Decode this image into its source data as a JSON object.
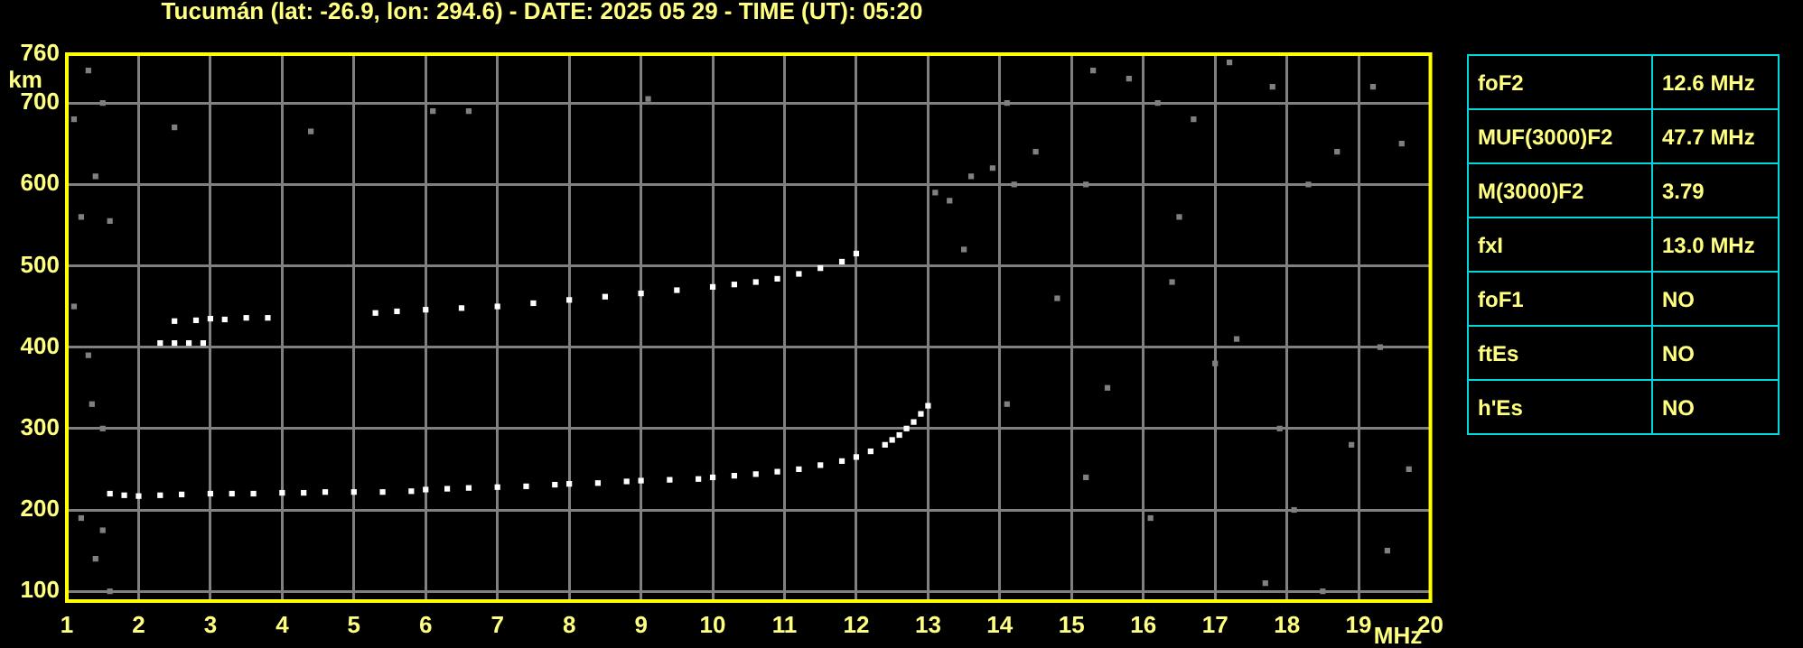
{
  "chart_data": {
    "type": "scatter",
    "title": "Tucumán (lat: -26.9, lon: 294.6) - DATE: 2025 05 29 - TIME (UT): 05:20",
    "xlabel": "MHz",
    "ylabel": "km",
    "xlim": [
      1,
      20
    ],
    "ylim": [
      88,
      760
    ],
    "xticks": [
      1,
      2,
      3,
      4,
      5,
      6,
      7,
      8,
      9,
      10,
      11,
      12,
      13,
      14,
      15,
      16,
      17,
      18,
      19,
      20
    ],
    "yticks": [
      100,
      200,
      300,
      400,
      500,
      600,
      700,
      760
    ],
    "grid": true,
    "marker": "square",
    "legend": false,
    "series": [
      {
        "color": "#ffffff",
        "x": [
          1.6,
          1.8,
          2.0,
          2.3,
          2.6,
          3.0,
          3.3,
          3.6,
          4.0,
          4.3,
          4.6,
          5.0,
          5.4,
          5.8,
          6.0,
          6.3,
          6.6,
          7.0,
          7.4,
          7.8,
          8.0,
          8.4,
          8.8,
          9.0,
          9.4,
          9.8,
          10.0,
          10.3,
          10.6,
          10.9,
          11.2,
          11.5,
          11.8,
          12.0,
          12.2,
          12.4,
          12.5,
          12.6,
          12.7,
          12.8,
          12.9,
          13.0
        ],
        "values": [
          220,
          218,
          217,
          218,
          219,
          220,
          220,
          220,
          221,
          221,
          222,
          222,
          222,
          223,
          225,
          226,
          227,
          228,
          229,
          231,
          232,
          233,
          235,
          236,
          237,
          238,
          240,
          242,
          244,
          247,
          250,
          255,
          260,
          265,
          272,
          280,
          286,
          292,
          300,
          308,
          318,
          328
        ]
      },
      {
        "color": "#ffffff",
        "x": [
          2.3,
          2.5,
          2.7,
          2.9,
          2.5,
          2.8,
          3.0,
          3.2,
          3.5,
          3.8,
          5.3,
          5.6,
          6.0,
          6.5,
          7.0,
          7.5,
          8.0,
          8.5,
          9.0,
          9.5,
          10.0,
          10.3,
          10.6,
          10.9,
          11.2,
          11.5,
          11.8,
          12.0
        ],
        "values": [
          405,
          405,
          405,
          405,
          432,
          433,
          435,
          434,
          436,
          436,
          442,
          444,
          446,
          448,
          450,
          454,
          458,
          462,
          466,
          470,
          474,
          477,
          480,
          484,
          490,
          497,
          505,
          515
        ]
      },
      {
        "color": "#808080",
        "x": [
          1.1,
          1.3,
          1.5,
          1.4,
          1.2,
          1.6,
          1.1,
          1.3,
          1.5,
          1.2,
          1.4,
          1.6,
          2.5,
          4.4,
          6.1,
          6.6,
          9.1,
          1.35,
          1.5,
          13.1,
          13.3,
          13.6,
          13.9,
          14.2,
          14.5,
          14.1,
          15.3,
          15.8,
          16.2,
          16.7,
          17.2,
          17.8,
          18.3,
          18.7,
          19.2,
          19.6,
          13.5,
          14.8,
          15.5,
          16.4,
          17.3,
          18.1,
          18.9,
          19.4,
          14.1,
          15.2,
          16.1,
          17.0,
          17.7,
          18.5,
          19.3,
          19.7,
          15.2,
          16.5,
          17.9
        ],
        "values": [
          680,
          740,
          700,
          610,
          560,
          555,
          450,
          390,
          300,
          190,
          140,
          100,
          670,
          665,
          690,
          690,
          705,
          330,
          175,
          590,
          580,
          610,
          620,
          600,
          640,
          700,
          740,
          730,
          700,
          680,
          750,
          720,
          600,
          640,
          720,
          650,
          520,
          460,
          350,
          480,
          410,
          200,
          280,
          150,
          330,
          240,
          190,
          380,
          110,
          100,
          400,
          250,
          600,
          560,
          300
        ]
      }
    ],
    "annotations": [
      "foF2",
      "12.6 MHz",
      "MUF(3000)F2",
      "47.7 MHz",
      "M(3000)F2",
      "3.79",
      "fxI",
      "13.0 MHz",
      "foF1",
      "NO",
      "ftEs",
      "NO",
      "h'Es",
      "NO"
    ]
  }
}
